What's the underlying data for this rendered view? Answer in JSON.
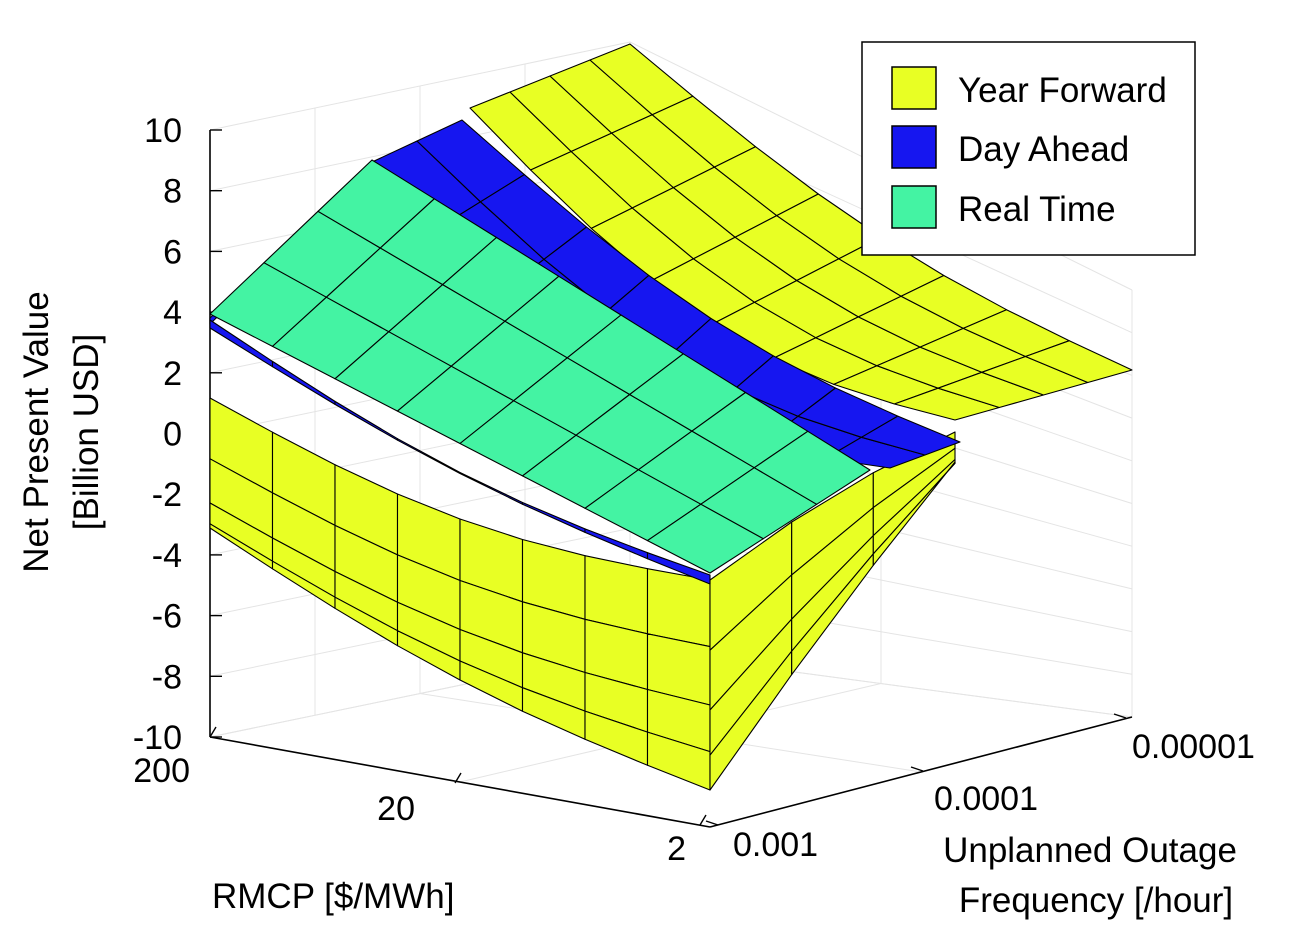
{
  "chart_data": {
    "type": "surface3d",
    "title": "",
    "zlabel": [
      "Net Present Value",
      "[Billion USD]"
    ],
    "xlabel": "RMCP [$/MWh]",
    "ylabel": [
      "Unplanned Outage",
      "Frequency [/hour]"
    ],
    "z_ticks": [
      "10",
      "8",
      "6",
      "4",
      "2",
      "0",
      "-2",
      "-4",
      "-6",
      "-8",
      "-10"
    ],
    "zlim": [
      -10,
      10
    ],
    "x_ticks": [
      "200",
      "20",
      "2"
    ],
    "x_scale": "log",
    "y_ticks": [
      "0.001",
      "0.0001",
      "0.00001"
    ],
    "y_scale": "log",
    "legend_position": "top-right",
    "legend": [
      {
        "label": "Year Forward",
        "color": "#e8ff24"
      },
      {
        "label": "Day Ahead",
        "color": "#1616f0"
      },
      {
        "label": "Real Time",
        "color": "#44f3a3"
      }
    ],
    "series": [
      {
        "name": "Year Forward",
        "color": "#e8ff24",
        "rmcp_values": [
          2,
          20,
          200
        ],
        "outage_frequency_values": [
          0.001,
          0.0001,
          1e-05
        ],
        "npv_corners": {
          "rmcp_200_outage_0.001": -3.1,
          "rmcp_2_outage_0.001": -8.6,
          "rmcp_200_outage_0.00001": 10.3,
          "rmcp_2_outage_0.00001": 1.9
        }
      },
      {
        "name": "Day Ahead",
        "color": "#1616f0",
        "npv_corners": {
          "rmcp_200_outage_0.001": 3.8,
          "rmcp_2_outage_0.001": -4.8,
          "rmcp_200_outage_0.0001": 9.7,
          "rmcp_2_outage_0.00001": 1.4
        }
      },
      {
        "name": "Real Time",
        "color": "#44f3a3",
        "npv_corners": {
          "rmcp_200_outage_0.001": 3.9,
          "rmcp_2_outage_0.001": -4.7,
          "rmcp_200_outage_0.0001": 7.8,
          "rmcp_2_outage_0.0001": -1.0
        }
      }
    ]
  }
}
